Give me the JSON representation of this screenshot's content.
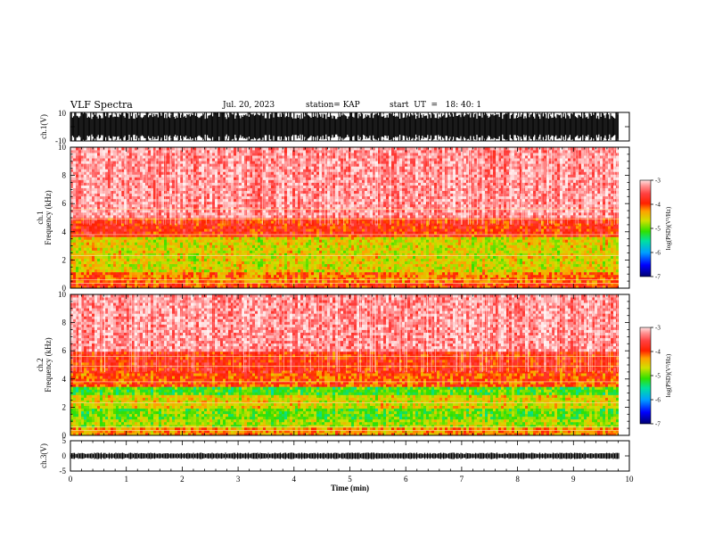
{
  "header": {
    "title": "VLF Spectra",
    "date": "Jul. 20, 2023",
    "station": "station= KAP",
    "start": "start  UT  =   18: 40: 1"
  },
  "colors": {
    "dark_red": "#c00000",
    "red": "#ff2020",
    "orange": "#ff8800",
    "yellow": "#f0d000",
    "green": "#30e000",
    "cyan": "#00c0a0",
    "blue": "#0000ff",
    "navy": "#000070"
  },
  "chart_data": [
    {
      "type": "line",
      "name": "waveform-ch1",
      "ylabel": "ch.1(V)",
      "ylim": [
        -10,
        10
      ],
      "yticks": [
        "10",
        "-10"
      ],
      "xlim": [
        0,
        10
      ],
      "description_values": {
        "approx_range": [
          -10,
          10
        ]
      }
    },
    {
      "type": "heatmap",
      "name": "spectrogram-ch1",
      "ylabel": "ch.1\nFrequency (kHz)",
      "ylim": [
        0,
        10
      ],
      "yticks": [
        0,
        2,
        4,
        6,
        8,
        10
      ],
      "xlim": [
        0,
        9.8
      ],
      "bands": [
        {
          "f": [
            0.0,
            0.3
          ],
          "level": -4.0
        },
        {
          "f": [
            0.3,
            1.2
          ],
          "level": -4.2
        },
        {
          "f": [
            1.2,
            2.0
          ],
          "level": -4.6
        },
        {
          "f": [
            2.0,
            3.7
          ],
          "level": -4.6
        },
        {
          "f": [
            3.7,
            5.0
          ],
          "level": -3.9
        },
        {
          "f": [
            5.0,
            10.0
          ],
          "level": -3.3
        }
      ],
      "colorbar": {
        "label": "log(PSD)(V²/Hz)",
        "range": [
          -7,
          -3
        ],
        "ticks": [
          "-3",
          "-4",
          "-5",
          "-6",
          "-7"
        ]
      }
    },
    {
      "type": "heatmap",
      "name": "spectrogram-ch2",
      "ylabel": "ch.2\nFrequency (kHz)",
      "ylim": [
        0,
        10
      ],
      "yticks": [
        0,
        2,
        4,
        6,
        8,
        10
      ],
      "xlim": [
        0,
        9.8
      ],
      "bands": [
        {
          "f": [
            0.0,
            0.6
          ],
          "level": -4.3
        },
        {
          "f": [
            0.6,
            1.2
          ],
          "level": -4.8
        },
        {
          "f": [
            1.2,
            2.0
          ],
          "level": -5.0
        },
        {
          "f": [
            2.0,
            2.8
          ],
          "level": -4.6
        },
        {
          "f": [
            2.8,
            3.4
          ],
          "level": -5.1
        },
        {
          "f": [
            3.4,
            4.5
          ],
          "level": -4.1
        },
        {
          "f": [
            4.5,
            6.0
          ],
          "level": -3.9
        },
        {
          "f": [
            6.0,
            10.0
          ],
          "level": -3.3
        }
      ],
      "colorbar": {
        "label": "log(PSD)(V²/Hz)",
        "range": [
          -7,
          -3
        ],
        "ticks": [
          "-3",
          "-4",
          "-5",
          "-6",
          "-7"
        ]
      }
    },
    {
      "type": "line",
      "name": "waveform-ch3",
      "ylabel": "ch.3(V)",
      "ylim": [
        -5,
        5
      ],
      "yticks": [
        "5",
        "0",
        "-5"
      ],
      "xlim": [
        0,
        10
      ],
      "description_values": {
        "approx_range": [
          -0.5,
          0.5
        ]
      }
    }
  ],
  "xaxis": {
    "label": "Time (min)",
    "ticks": [
      "0",
      "1",
      "2",
      "3",
      "4",
      "5",
      "6",
      "7",
      "8",
      "9",
      "10"
    ]
  }
}
